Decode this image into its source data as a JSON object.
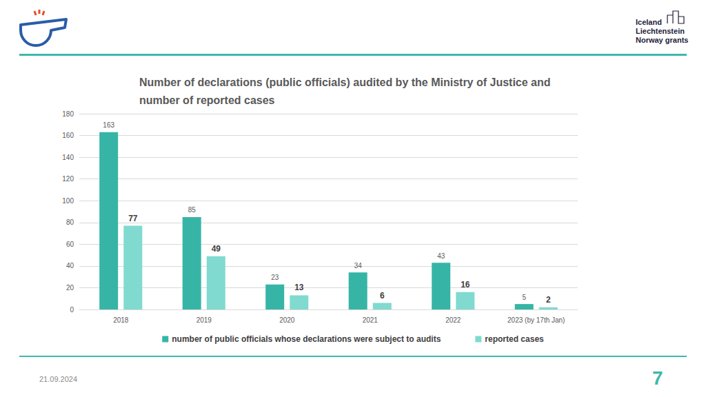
{
  "header": {
    "logo_lines": [
      "Iceland",
      "Liechtenstein",
      "Norway grants"
    ]
  },
  "footer": {
    "date": "21.09.2024",
    "page": 7
  },
  "chart_data": {
    "type": "bar",
    "title": "Number of declarations (public officials) audited by the Ministry of Justice and number of reported cases",
    "categories": [
      "2018",
      "2019",
      "2020",
      "2021",
      "2022",
      "2023 (by 17th Jan)"
    ],
    "series": [
      {
        "name": "number of public officials whose declarations were subject to audits",
        "color": "#36b5a6",
        "values": [
          163,
          85,
          23,
          34,
          43,
          5
        ]
      },
      {
        "name": "reported cases",
        "color": "#80dacf",
        "values": [
          77,
          49,
          13,
          6,
          16,
          2
        ]
      }
    ],
    "ylim": [
      0,
      180
    ],
    "yticks": [
      0,
      20,
      40,
      60,
      80,
      100,
      120,
      140,
      160,
      180
    ],
    "grid": true,
    "legend": "bottom",
    "data_labels": true
  }
}
